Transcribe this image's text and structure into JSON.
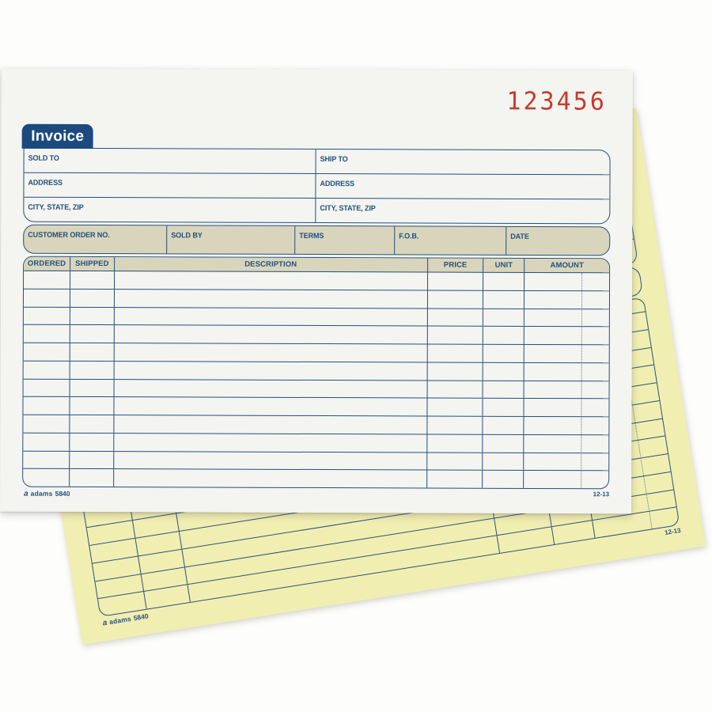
{
  "product": {
    "top_sheet": {
      "title": "Invoice",
      "form_number": "123456",
      "bill_fields": {
        "sold_to": [
          "SOLD TO",
          "ADDRESS",
          "CITY, STATE, ZIP"
        ],
        "ship_to": [
          "SHIP TO",
          "ADDRESS",
          "CITY, STATE, ZIP"
        ]
      },
      "order_fields": [
        "CUSTOMER ORDER NO.",
        "SOLD BY",
        "TERMS",
        "F.O.B.",
        "DATE"
      ],
      "items_table": {
        "columns": [
          "ORDERED",
          "SHIPPED",
          "DESCRIPTION",
          "PRICE",
          "UNIT",
          "AMOUNT"
        ],
        "row_count": 12,
        "rows": []
      },
      "brand_mark": "a",
      "brand_name": "adams",
      "model_number": "5840",
      "edition_code": "12-13"
    },
    "carbon_sheet": {
      "row_count": 12,
      "brand_mark": "a",
      "brand_name": "adams",
      "model_number": "5840",
      "edition_code": "12-13"
    },
    "colors": {
      "form_blue": "#24507c",
      "tab_blue": "#1c4a7e",
      "beige": "#d9d5bc",
      "stamp_red": "#c63a2c",
      "carbon_yellow": "#f1eeb2",
      "paper_white": "#f4f4f1"
    }
  }
}
